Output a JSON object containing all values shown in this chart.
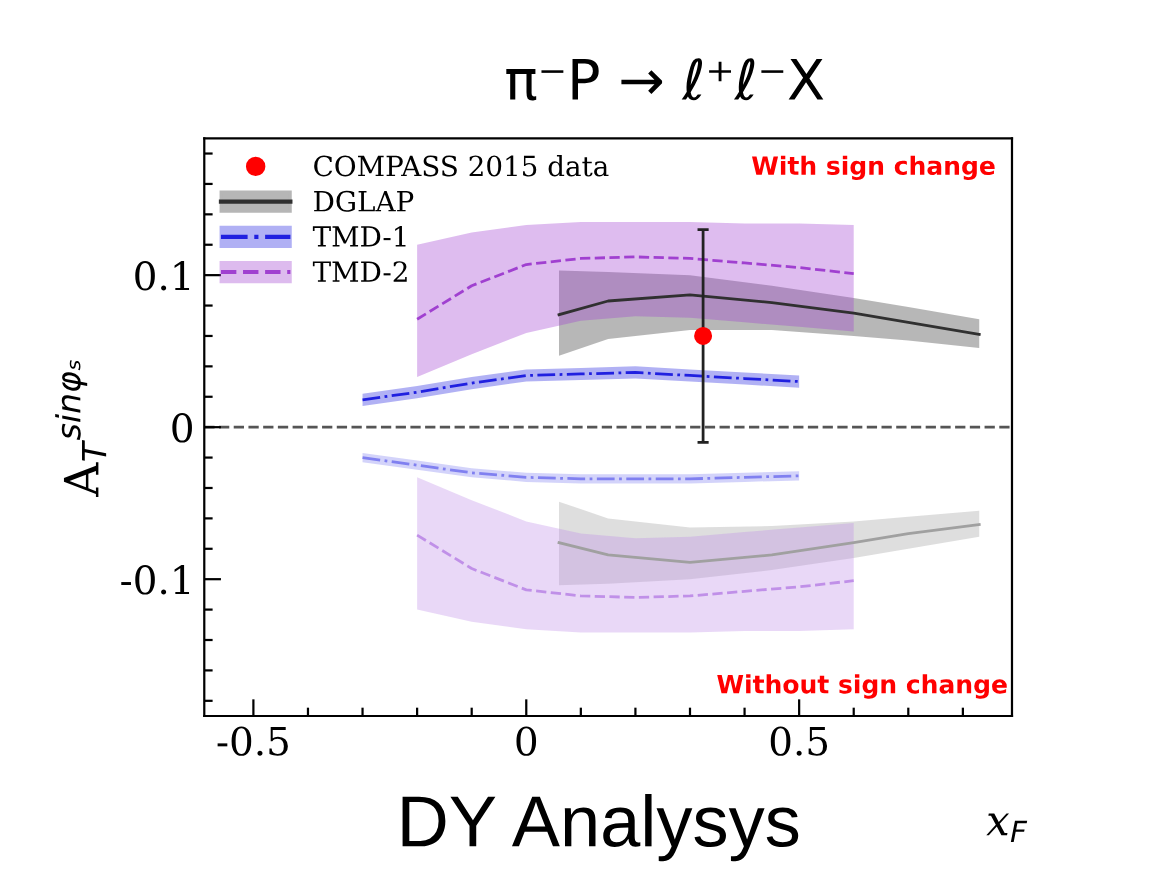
{
  "chart_data": {
    "type": "line",
    "title": "π⁻P → ℓ⁺ℓ⁻X",
    "xlabel": "x$_{F}$",
    "ylabel": "A$_{T}$$^{sinφₛ}$",
    "annotations": [
      "With sign change",
      "Without sign change",
      "DY Analysys"
    ],
    "xlim": [
      -0.59,
      0.89
    ],
    "ylim": [
      -0.19,
      0.19
    ],
    "xticks": [
      -0.5,
      {
        "value": -0.4,
        "label": null
      },
      {
        "value": -0.3,
        "label": null
      },
      {
        "value": -0.2,
        "label": null
      },
      {
        "value": -0.1,
        "label": null
      },
      0,
      {
        "value": 0.1,
        "label": null
      },
      {
        "value": 0.2,
        "label": null
      },
      {
        "value": 0.3,
        "label": null
      },
      {
        "value": 0.4,
        "label": null
      },
      0.5,
      {
        "value": 0.6,
        "label": null
      },
      {
        "value": 0.7,
        "label": null
      },
      {
        "value": 0.8,
        "label": null
      }
    ],
    "yticks": [
      {
        "value": -0.18,
        "label": null
      },
      {
        "value": -0.16,
        "label": null
      },
      {
        "value": -0.14,
        "label": null
      },
      {
        "value": -0.12,
        "label": null
      },
      -0.1,
      {
        "value": -0.08,
        "label": null
      },
      {
        "value": -0.06,
        "label": null
      },
      {
        "value": -0.04,
        "label": null
      },
      {
        "value": -0.02,
        "label": null
      },
      0,
      {
        "value": 0.02,
        "label": null
      },
      {
        "value": 0.04,
        "label": null
      },
      {
        "value": 0.06,
        "label": null
      },
      {
        "value": 0.08,
        "label": null
      },
      0.1,
      {
        "value": 0.12,
        "label": null
      },
      {
        "value": 0.14,
        "label": null
      },
      {
        "value": 0.16,
        "label": null
      },
      {
        "value": 0.18,
        "label": null
      }
    ],
    "grid": false,
    "legend": "top left",
    "ref_lines": [
      {
        "axis": "y",
        "value": 0,
        "color": "#555555",
        "line_style": "dashed"
      }
    ],
    "series": [
      {
        "name": "DGLAP",
        "line_style": "solid",
        "color": "#303030",
        "x": [
          0.06,
          0.15,
          0.3,
          0.45,
          0.6,
          0.7,
          0.83
        ],
        "values": [
          0.074,
          0.083,
          0.087,
          0.082,
          0.075,
          0.069,
          0.061
        ],
        "lower": [
          0.047,
          0.058,
          0.064,
          0.064,
          0.06,
          0.057,
          0.052
        ],
        "upper": [
          0.103,
          0.102,
          0.1,
          0.093,
          0.085,
          0.079,
          0.071
        ]
      },
      {
        "name": "TMD-1",
        "line_style": "dashdot",
        "color": "#2020e0",
        "x": [
          -0.3,
          -0.2,
          -0.1,
          0,
          0.1,
          0.2,
          0.3,
          0.4,
          0.5
        ],
        "values": [
          0.018,
          0.023,
          0.029,
          0.034,
          0.035,
          0.036,
          0.034,
          0.032,
          0.03
        ],
        "lower": [
          0.014,
          0.019,
          0.025,
          0.03,
          0.031,
          0.032,
          0.03,
          0.028,
          0.026
        ],
        "upper": [
          0.022,
          0.027,
          0.033,
          0.038,
          0.039,
          0.04,
          0.038,
          0.036,
          0.034
        ]
      },
      {
        "name": "TMD-2",
        "line_style": "dashed",
        "color": "#a040d0",
        "x": [
          -0.2,
          -0.1,
          0,
          0.1,
          0.2,
          0.3,
          0.4,
          0.5,
          0.6
        ],
        "values": [
          0.071,
          0.093,
          0.107,
          0.111,
          0.112,
          0.111,
          0.108,
          0.105,
          0.101
        ],
        "lower": [
          0.033,
          0.048,
          0.062,
          0.07,
          0.073,
          0.072,
          0.069,
          0.066,
          0.063
        ],
        "upper": [
          0.12,
          0.128,
          0.133,
          0.135,
          0.135,
          0.135,
          0.134,
          0.134,
          0.133
        ]
      },
      {
        "line_style": "solid",
        "color": "#a0a0a0",
        "x": [
          0.06,
          0.15,
          0.3,
          0.45,
          0.6,
          0.7,
          0.83
        ],
        "values": [
          -0.076,
          -0.084,
          -0.089,
          -0.084,
          -0.076,
          -0.07,
          -0.064
        ],
        "lower": [
          -0.104,
          -0.103,
          -0.1,
          -0.094,
          -0.086,
          -0.08,
          -0.072
        ],
        "upper": [
          -0.049,
          -0.06,
          -0.066,
          -0.065,
          -0.062,
          -0.059,
          -0.055
        ]
      },
      {
        "line_style": "dashdot",
        "color": "#8080f0",
        "x": [
          -0.3,
          -0.2,
          -0.1,
          0,
          0.1,
          0.2,
          0.3,
          0.4,
          0.5
        ],
        "values": [
          -0.02,
          -0.025,
          -0.03,
          -0.033,
          -0.034,
          -0.034,
          -0.034,
          -0.033,
          -0.032
        ],
        "lower": [
          -0.023,
          -0.028,
          -0.033,
          -0.036,
          -0.037,
          -0.037,
          -0.037,
          -0.036,
          -0.035
        ],
        "upper": [
          -0.017,
          -0.022,
          -0.027,
          -0.03,
          -0.031,
          -0.031,
          -0.031,
          -0.03,
          -0.029
        ]
      },
      {
        "line_style": "dashed",
        "color": "#c090e8",
        "x": [
          -0.2,
          -0.1,
          0,
          0.1,
          0.2,
          0.3,
          0.4,
          0.5,
          0.6
        ],
        "values": [
          -0.071,
          -0.093,
          -0.107,
          -0.111,
          -0.112,
          -0.111,
          -0.108,
          -0.105,
          -0.101
        ],
        "lower": [
          -0.12,
          -0.128,
          -0.133,
          -0.135,
          -0.135,
          -0.135,
          -0.134,
          -0.134,
          -0.133
        ],
        "upper": [
          -0.033,
          -0.048,
          -0.062,
          -0.07,
          -0.073,
          -0.072,
          -0.069,
          -0.066,
          -0.063
        ]
      },
      {
        "name": "COMPASS 2015 data",
        "type": "scatter",
        "marker": "circle",
        "color": "#ff0000",
        "x": [
          0.324
        ],
        "values": [
          0.06
        ],
        "errors": [
          0.07
        ]
      }
    ]
  }
}
